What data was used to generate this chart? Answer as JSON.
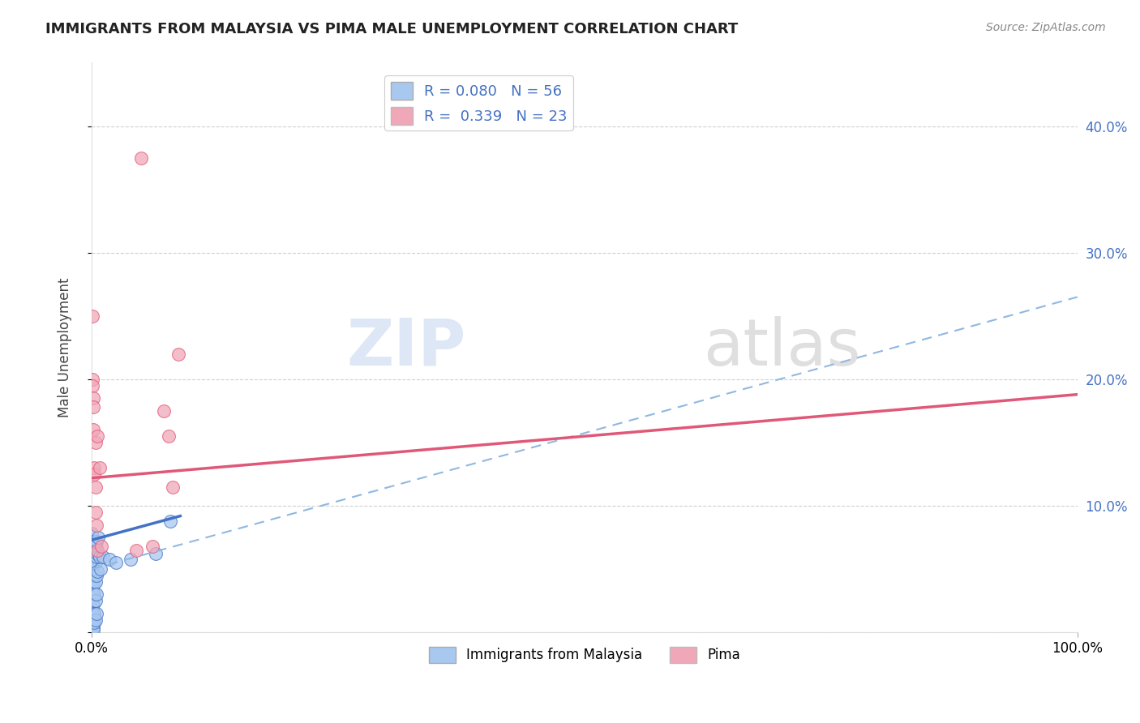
{
  "title": "IMMIGRANTS FROM MALAYSIA VS PIMA MALE UNEMPLOYMENT CORRELATION CHART",
  "source": "Source: ZipAtlas.com",
  "ylabel": "Male Unemployment",
  "legend_label_1": "Immigrants from Malaysia",
  "legend_label_2": "Pima",
  "R1": 0.08,
  "N1": 56,
  "R2": 0.339,
  "N2": 23,
  "color_blue": "#a8c8f0",
  "color_pink": "#f0a8b8",
  "trendline_blue_solid": "#4472c4",
  "trendline_pink_solid": "#e05878",
  "trendline_blue_dashed": "#90b8e0",
  "blue_dots": [
    [
      0.0,
      0.063
    ],
    [
      0.0,
      0.078
    ],
    [
      0.001,
      0.055
    ],
    [
      0.001,
      0.048
    ],
    [
      0.001,
      0.043
    ],
    [
      0.001,
      0.04
    ],
    [
      0.001,
      0.035
    ],
    [
      0.001,
      0.032
    ],
    [
      0.001,
      0.028
    ],
    [
      0.001,
      0.022
    ],
    [
      0.001,
      0.018
    ],
    [
      0.001,
      0.014
    ],
    [
      0.001,
      0.01
    ],
    [
      0.001,
      0.006
    ],
    [
      0.001,
      0.004
    ],
    [
      0.001,
      0.002
    ],
    [
      0.001,
      0.072
    ],
    [
      0.001,
      0.068
    ],
    [
      0.001,
      0.06
    ],
    [
      0.002,
      0.063
    ],
    [
      0.002,
      0.055
    ],
    [
      0.002,
      0.045
    ],
    [
      0.002,
      0.038
    ],
    [
      0.002,
      0.03
    ],
    [
      0.002,
      0.022
    ],
    [
      0.002,
      0.015
    ],
    [
      0.002,
      0.008
    ],
    [
      0.002,
      0.004
    ],
    [
      0.002,
      0.002
    ],
    [
      0.003,
      0.065
    ],
    [
      0.003,
      0.055
    ],
    [
      0.003,
      0.045
    ],
    [
      0.003,
      0.03
    ],
    [
      0.003,
      0.015
    ],
    [
      0.003,
      0.008
    ],
    [
      0.004,
      0.068
    ],
    [
      0.004,
      0.055
    ],
    [
      0.004,
      0.04
    ],
    [
      0.004,
      0.025
    ],
    [
      0.004,
      0.01
    ],
    [
      0.005,
      0.072
    ],
    [
      0.005,
      0.06
    ],
    [
      0.005,
      0.045
    ],
    [
      0.005,
      0.03
    ],
    [
      0.005,
      0.015
    ],
    [
      0.006,
      0.062
    ],
    [
      0.006,
      0.048
    ],
    [
      0.007,
      0.075
    ],
    [
      0.008,
      0.06
    ],
    [
      0.009,
      0.05
    ],
    [
      0.012,
      0.06
    ],
    [
      0.018,
      0.058
    ],
    [
      0.025,
      0.055
    ],
    [
      0.04,
      0.058
    ],
    [
      0.065,
      0.062
    ],
    [
      0.08,
      0.088
    ]
  ],
  "pink_dots": [
    [
      0.001,
      0.25
    ],
    [
      0.001,
      0.2
    ],
    [
      0.001,
      0.195
    ],
    [
      0.002,
      0.185
    ],
    [
      0.002,
      0.178
    ],
    [
      0.002,
      0.16
    ],
    [
      0.003,
      0.13
    ],
    [
      0.003,
      0.125
    ],
    [
      0.004,
      0.15
    ],
    [
      0.004,
      0.115
    ],
    [
      0.004,
      0.095
    ],
    [
      0.005,
      0.085
    ],
    [
      0.006,
      0.155
    ],
    [
      0.006,
      0.065
    ],
    [
      0.008,
      0.13
    ],
    [
      0.01,
      0.068
    ],
    [
      0.045,
      0.065
    ],
    [
      0.05,
      0.375
    ],
    [
      0.062,
      0.068
    ],
    [
      0.073,
      0.175
    ],
    [
      0.078,
      0.155
    ],
    [
      0.082,
      0.115
    ],
    [
      0.088,
      0.22
    ]
  ],
  "xlim": [
    0.0,
    1.0
  ],
  "ylim": [
    0.0,
    0.45
  ],
  "yticks": [
    0.0,
    0.1,
    0.2,
    0.3,
    0.4
  ],
  "right_ytick_labels": [
    "",
    "10.0%",
    "20.0%",
    "30.0%",
    "40.0%"
  ],
  "xticks": [
    0.0,
    1.0
  ],
  "xtick_labels": [
    "0.0%",
    "100.0%"
  ],
  "watermark_zip": "ZIP",
  "watermark_atlas": "atlas",
  "background_color": "#ffffff",
  "grid_color": "#d0d0d0",
  "blue_solid_line": [
    [
      0.0,
      0.073
    ],
    [
      0.09,
      0.092
    ]
  ],
  "blue_dashed_line": [
    [
      0.0,
      0.05
    ],
    [
      1.0,
      0.265
    ]
  ],
  "pink_solid_line": [
    [
      0.0,
      0.122
    ],
    [
      1.0,
      0.188
    ]
  ]
}
